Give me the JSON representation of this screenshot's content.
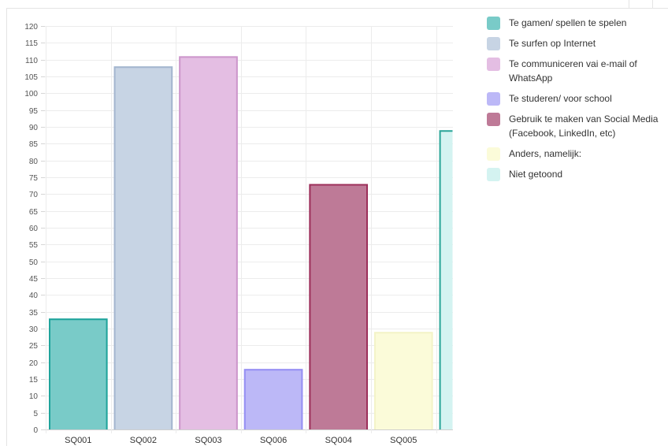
{
  "chart_data": {
    "type": "bar",
    "categories": [
      "SQ001",
      "SQ002",
      "SQ003",
      "SQ006",
      "SQ004",
      "SQ005",
      ""
    ],
    "values": [
      33,
      108,
      111,
      18,
      73,
      29,
      89
    ],
    "ylim": [
      0,
      120
    ],
    "ytick_step": 5,
    "grid": true,
    "legend_position": "right",
    "series": [
      {
        "name": "Te gamen/ spellen te spelen",
        "fill": "#79cbc8",
        "stroke": "#1fa49b",
        "value": 33
      },
      {
        "name": "Te surfen op Internet",
        "fill": "#c7d4e4",
        "stroke": "#a4b6cf",
        "value": 108
      },
      {
        "name": "Te communiceren vai e-mail of WhatsApp",
        "fill": "#e4bee3",
        "stroke": "#cc96cb",
        "value": 111
      },
      {
        "name": "Te studeren/ voor school",
        "fill": "#bcb8f7",
        "stroke": "#958ff3",
        "value": 18
      },
      {
        "name": "Gebruik te maken van Social Media (Facebook, LinkedIn, etc)",
        "fill": "#be7a97",
        "stroke": "#9c2f5a",
        "value": 73
      },
      {
        "name": "Anders, namelijk:",
        "fill": "#fbfbd9",
        "stroke": "#f3f3c8",
        "value": 29
      },
      {
        "name": "Niet getoond",
        "fill": "#d4f3f1",
        "stroke": "#2aa598",
        "value": 89
      }
    ]
  }
}
